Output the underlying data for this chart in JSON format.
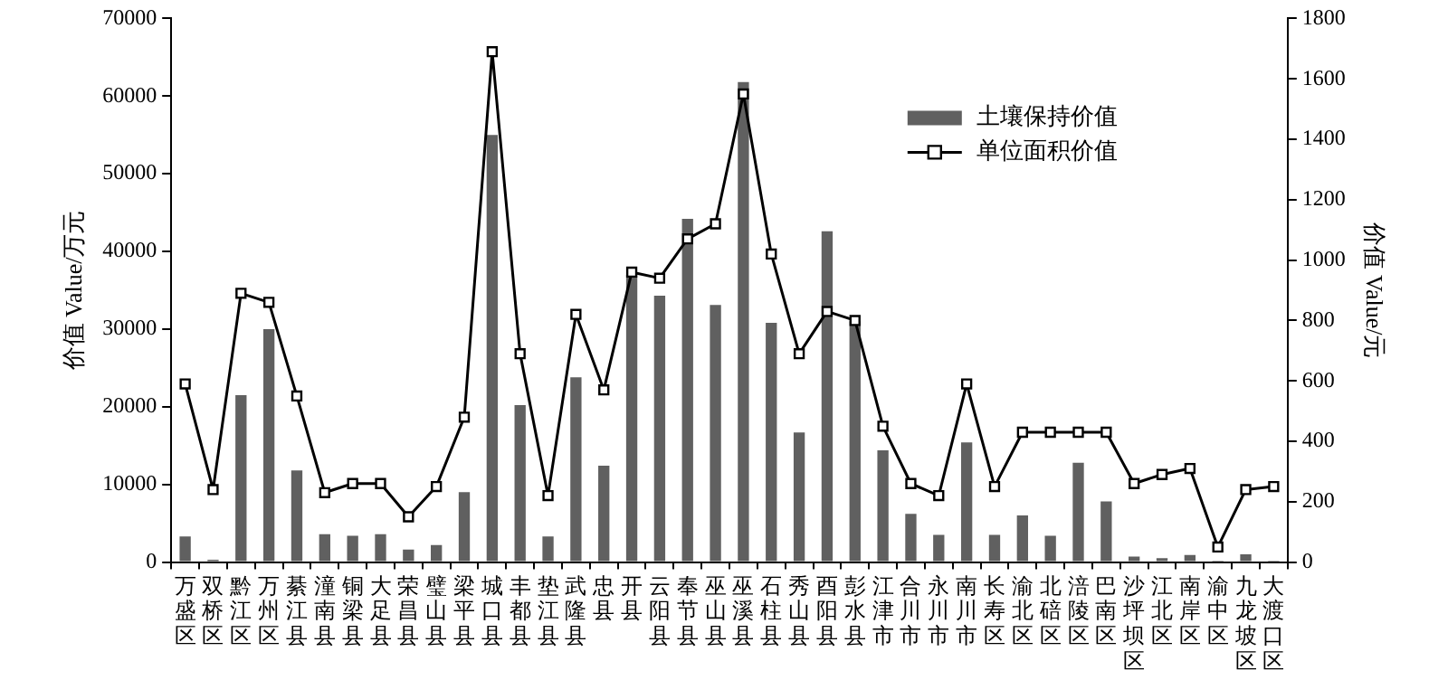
{
  "chart_data": {
    "type": "bar",
    "ylabel": "价值 Value/万元",
    "y2label": "价值 Value/元",
    "categories": [
      "万盛区",
      "双桥区",
      "黔江区",
      "万州区",
      "綦江县",
      "潼南县",
      "铜梁县",
      "大足县",
      "荣昌县",
      "璧山县",
      "梁平县",
      "城口县",
      "丰都县",
      "垫江县",
      "武隆县",
      "忠县",
      "开县",
      "云阳县",
      "奉节县",
      "巫山县",
      "巫溪县",
      "石柱县",
      "秀山县",
      "酉阳县",
      "彭水县",
      "江津市",
      "合川市",
      "永川市",
      "南川市",
      "长寿区",
      "渝北区",
      "北碚区",
      "涪陵区",
      "巴南区",
      "沙坪坝区",
      "江北区",
      "南岸区",
      "渝中区",
      "九龙坡区",
      "大渡口区"
    ],
    "series": [
      {
        "name": "土壤保持价值",
        "color": "#606060",
        "values": [
          3300,
          300,
          21500,
          30000,
          11800,
          3600,
          3400,
          3600,
          1600,
          2200,
          9000,
          55000,
          20200,
          3300,
          23800,
          12400,
          37000,
          34300,
          44200,
          33100,
          61800,
          30800,
          16700,
          42600,
          31000,
          14400,
          6200,
          3500,
          15400,
          3500,
          6000,
          3400,
          12800,
          7800,
          700,
          500,
          900,
          200,
          1000,
          200
        ]
      },
      {
        "name": "单位面积价值",
        "type": "line",
        "axis": "y2",
        "color": "#000000",
        "marker": "square",
        "values": [
          590,
          240,
          890,
          860,
          550,
          230,
          260,
          260,
          150,
          250,
          480,
          1690,
          690,
          220,
          820,
          570,
          960,
          940,
          1070,
          1120,
          1550,
          1020,
          690,
          830,
          800,
          450,
          260,
          220,
          590,
          250,
          430,
          430,
          430,
          430,
          260,
          290,
          310,
          50,
          240,
          250
        ]
      }
    ],
    "ylim": [
      0,
      70000
    ],
    "yticks": [
      0,
      10000,
      20000,
      30000,
      40000,
      50000,
      60000,
      70000
    ],
    "y2lim": [
      0,
      1800
    ],
    "y2ticks": [
      0,
      200,
      400,
      600,
      800,
      1000,
      1200,
      1400,
      1600,
      1800
    ],
    "grid": false,
    "legend": "top right"
  }
}
